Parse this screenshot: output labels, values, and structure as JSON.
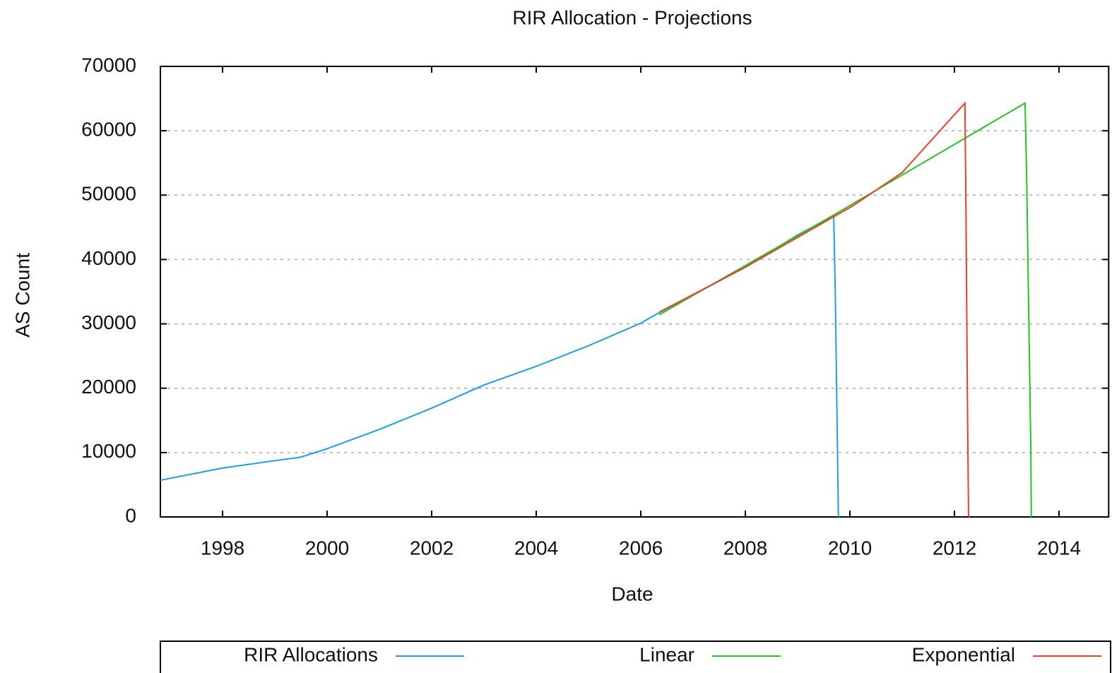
{
  "chart_data": {
    "type": "line",
    "title": "RIR Allocation - Projections",
    "x_label": "Date",
    "y_label": "AS Count",
    "xlim": [
      1996.81,
      2014.95
    ],
    "xticks": [
      1998,
      2000,
      2002,
      2004,
      2006,
      2008,
      2010,
      2012,
      2014
    ],
    "ylim": [
      0,
      70000
    ],
    "yticks": [
      0,
      10000,
      20000,
      30000,
      40000,
      50000,
      60000,
      70000
    ],
    "grid": true,
    "legend": "bottom",
    "series": [
      {
        "name": "RIR Allocations",
        "color": "#1e9ee8",
        "x": [
          1996.81,
          1998,
          1999.5,
          2000,
          2001,
          2002,
          2003,
          2004,
          2005,
          2006,
          2006.3,
          2007,
          2008,
          2009,
          2009.69,
          2009.72,
          2009.78
        ],
        "values": [
          5700,
          7600,
          9300,
          10600,
          13600,
          16900,
          20500,
          23400,
          26600,
          30100,
          31500,
          34500,
          38800,
          43800,
          46800,
          35000,
          0
        ]
      },
      {
        "name": "Linear",
        "color": "#1ec81e",
        "x": [
          2006.35,
          2009.69,
          2013.35,
          2013.38,
          2013.42,
          2013.46,
          2013.47
        ],
        "values": [
          31400,
          46900,
          64300,
          53500,
          32000,
          11000,
          0
        ]
      },
      {
        "name": "Exponential",
        "color": "#f03c28",
        "x": [
          2006.35,
          2008,
          2010.05,
          2011,
          2012.2,
          2012.22,
          2012.25,
          2012.27
        ],
        "values": [
          31800,
          38800,
          48300,
          53500,
          64300,
          48000,
          16000,
          0
        ]
      }
    ]
  }
}
